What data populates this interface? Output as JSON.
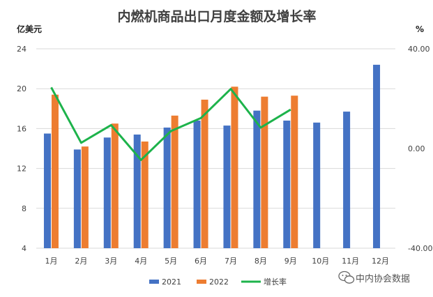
{
  "chart_data": {
    "type": "bar+line",
    "title": "内燃机商品出口月度金额及增长率",
    "ylabel_left": "亿美元",
    "ylabel_right": "%",
    "categories": [
      "1月",
      "2月",
      "3月",
      "4月",
      "5月",
      "6月",
      "7月",
      "8月",
      "9月",
      "10月",
      "11月",
      "12月"
    ],
    "series": [
      {
        "name": "2021",
        "type": "bar",
        "axis": "left",
        "color": "#4472C4",
        "values": [
          15.5,
          13.9,
          15.1,
          15.4,
          16.1,
          16.8,
          16.3,
          17.8,
          16.8,
          16.6,
          17.7,
          22.4
        ]
      },
      {
        "name": "2022",
        "type": "bar",
        "axis": "left",
        "color": "#ED7D31",
        "values": [
          19.4,
          14.2,
          16.5,
          14.7,
          17.3,
          18.9,
          20.2,
          19.2,
          19.3,
          null,
          null,
          null
        ]
      },
      {
        "name": "增长率",
        "type": "line",
        "axis": "right",
        "color": "#1DB34B",
        "values": [
          24.5,
          2.3,
          9.4,
          -4.6,
          7.0,
          12.2,
          23.9,
          8.4,
          15.6,
          null,
          null,
          null
        ]
      }
    ],
    "y_left": {
      "min": 4,
      "max": 24,
      "ticks": [
        "4",
        "8",
        "12",
        "16",
        "20",
        "24"
      ]
    },
    "y_right": {
      "min": -40,
      "max": 40,
      "ticks": [
        "-40.00",
        "0.00",
        "40.00"
      ]
    },
    "grid": true,
    "legend_position": "bottom"
  },
  "watermark": {
    "text": "中内协会数据",
    "icon": "wechat-icon"
  }
}
